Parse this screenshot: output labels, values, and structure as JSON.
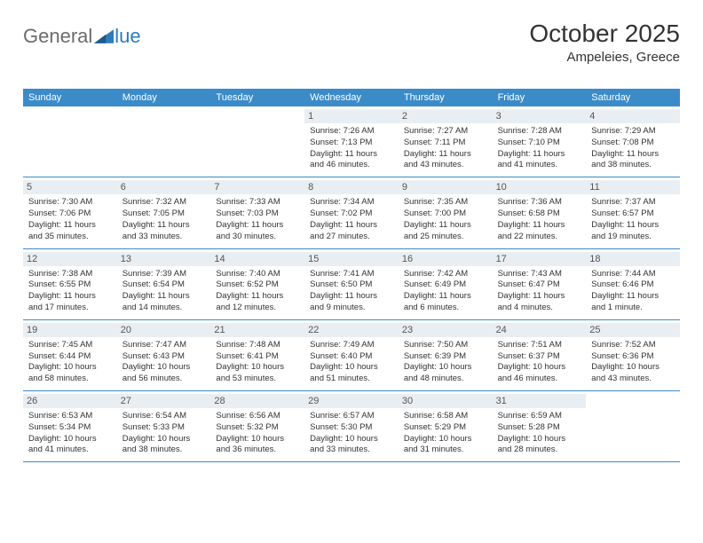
{
  "logo": {
    "part1": "General",
    "part2": "lue"
  },
  "header": {
    "month": "October 2025",
    "location": "Ampeleies, Greece"
  },
  "colors": {
    "header_bg": "#3b8bc9",
    "header_text": "#ffffff",
    "daynum_bg": "#e9eef2",
    "divider": "#3b8bc9",
    "text": "#333333"
  },
  "layout": {
    "columns": 7,
    "rows": 5,
    "cell_min_height": 78
  },
  "weekdays": [
    "Sunday",
    "Monday",
    "Tuesday",
    "Wednesday",
    "Thursday",
    "Friday",
    "Saturday"
  ],
  "weeks": [
    [
      {
        "blank": true
      },
      {
        "blank": true
      },
      {
        "blank": true
      },
      {
        "day": "1",
        "sunrise": "Sunrise: 7:26 AM",
        "sunset": "Sunset: 7:13 PM",
        "daylight": "Daylight: 11 hours and 46 minutes."
      },
      {
        "day": "2",
        "sunrise": "Sunrise: 7:27 AM",
        "sunset": "Sunset: 7:11 PM",
        "daylight": "Daylight: 11 hours and 43 minutes."
      },
      {
        "day": "3",
        "sunrise": "Sunrise: 7:28 AM",
        "sunset": "Sunset: 7:10 PM",
        "daylight": "Daylight: 11 hours and 41 minutes."
      },
      {
        "day": "4",
        "sunrise": "Sunrise: 7:29 AM",
        "sunset": "Sunset: 7:08 PM",
        "daylight": "Daylight: 11 hours and 38 minutes."
      }
    ],
    [
      {
        "day": "5",
        "sunrise": "Sunrise: 7:30 AM",
        "sunset": "Sunset: 7:06 PM",
        "daylight": "Daylight: 11 hours and 35 minutes."
      },
      {
        "day": "6",
        "sunrise": "Sunrise: 7:32 AM",
        "sunset": "Sunset: 7:05 PM",
        "daylight": "Daylight: 11 hours and 33 minutes."
      },
      {
        "day": "7",
        "sunrise": "Sunrise: 7:33 AM",
        "sunset": "Sunset: 7:03 PM",
        "daylight": "Daylight: 11 hours and 30 minutes."
      },
      {
        "day": "8",
        "sunrise": "Sunrise: 7:34 AM",
        "sunset": "Sunset: 7:02 PM",
        "daylight": "Daylight: 11 hours and 27 minutes."
      },
      {
        "day": "9",
        "sunrise": "Sunrise: 7:35 AM",
        "sunset": "Sunset: 7:00 PM",
        "daylight": "Daylight: 11 hours and 25 minutes."
      },
      {
        "day": "10",
        "sunrise": "Sunrise: 7:36 AM",
        "sunset": "Sunset: 6:58 PM",
        "daylight": "Daylight: 11 hours and 22 minutes."
      },
      {
        "day": "11",
        "sunrise": "Sunrise: 7:37 AM",
        "sunset": "Sunset: 6:57 PM",
        "daylight": "Daylight: 11 hours and 19 minutes."
      }
    ],
    [
      {
        "day": "12",
        "sunrise": "Sunrise: 7:38 AM",
        "sunset": "Sunset: 6:55 PM",
        "daylight": "Daylight: 11 hours and 17 minutes."
      },
      {
        "day": "13",
        "sunrise": "Sunrise: 7:39 AM",
        "sunset": "Sunset: 6:54 PM",
        "daylight": "Daylight: 11 hours and 14 minutes."
      },
      {
        "day": "14",
        "sunrise": "Sunrise: 7:40 AM",
        "sunset": "Sunset: 6:52 PM",
        "daylight": "Daylight: 11 hours and 12 minutes."
      },
      {
        "day": "15",
        "sunrise": "Sunrise: 7:41 AM",
        "sunset": "Sunset: 6:50 PM",
        "daylight": "Daylight: 11 hours and 9 minutes."
      },
      {
        "day": "16",
        "sunrise": "Sunrise: 7:42 AM",
        "sunset": "Sunset: 6:49 PM",
        "daylight": "Daylight: 11 hours and 6 minutes."
      },
      {
        "day": "17",
        "sunrise": "Sunrise: 7:43 AM",
        "sunset": "Sunset: 6:47 PM",
        "daylight": "Daylight: 11 hours and 4 minutes."
      },
      {
        "day": "18",
        "sunrise": "Sunrise: 7:44 AM",
        "sunset": "Sunset: 6:46 PM",
        "daylight": "Daylight: 11 hours and 1 minute."
      }
    ],
    [
      {
        "day": "19",
        "sunrise": "Sunrise: 7:45 AM",
        "sunset": "Sunset: 6:44 PM",
        "daylight": "Daylight: 10 hours and 58 minutes."
      },
      {
        "day": "20",
        "sunrise": "Sunrise: 7:47 AM",
        "sunset": "Sunset: 6:43 PM",
        "daylight": "Daylight: 10 hours and 56 minutes."
      },
      {
        "day": "21",
        "sunrise": "Sunrise: 7:48 AM",
        "sunset": "Sunset: 6:41 PM",
        "daylight": "Daylight: 10 hours and 53 minutes."
      },
      {
        "day": "22",
        "sunrise": "Sunrise: 7:49 AM",
        "sunset": "Sunset: 6:40 PM",
        "daylight": "Daylight: 10 hours and 51 minutes."
      },
      {
        "day": "23",
        "sunrise": "Sunrise: 7:50 AM",
        "sunset": "Sunset: 6:39 PM",
        "daylight": "Daylight: 10 hours and 48 minutes."
      },
      {
        "day": "24",
        "sunrise": "Sunrise: 7:51 AM",
        "sunset": "Sunset: 6:37 PM",
        "daylight": "Daylight: 10 hours and 46 minutes."
      },
      {
        "day": "25",
        "sunrise": "Sunrise: 7:52 AM",
        "sunset": "Sunset: 6:36 PM",
        "daylight": "Daylight: 10 hours and 43 minutes."
      }
    ],
    [
      {
        "day": "26",
        "sunrise": "Sunrise: 6:53 AM",
        "sunset": "Sunset: 5:34 PM",
        "daylight": "Daylight: 10 hours and 41 minutes."
      },
      {
        "day": "27",
        "sunrise": "Sunrise: 6:54 AM",
        "sunset": "Sunset: 5:33 PM",
        "daylight": "Daylight: 10 hours and 38 minutes."
      },
      {
        "day": "28",
        "sunrise": "Sunrise: 6:56 AM",
        "sunset": "Sunset: 5:32 PM",
        "daylight": "Daylight: 10 hours and 36 minutes."
      },
      {
        "day": "29",
        "sunrise": "Sunrise: 6:57 AM",
        "sunset": "Sunset: 5:30 PM",
        "daylight": "Daylight: 10 hours and 33 minutes."
      },
      {
        "day": "30",
        "sunrise": "Sunrise: 6:58 AM",
        "sunset": "Sunset: 5:29 PM",
        "daylight": "Daylight: 10 hours and 31 minutes."
      },
      {
        "day": "31",
        "sunrise": "Sunrise: 6:59 AM",
        "sunset": "Sunset: 5:28 PM",
        "daylight": "Daylight: 10 hours and 28 minutes."
      },
      {
        "blank": true
      }
    ]
  ]
}
